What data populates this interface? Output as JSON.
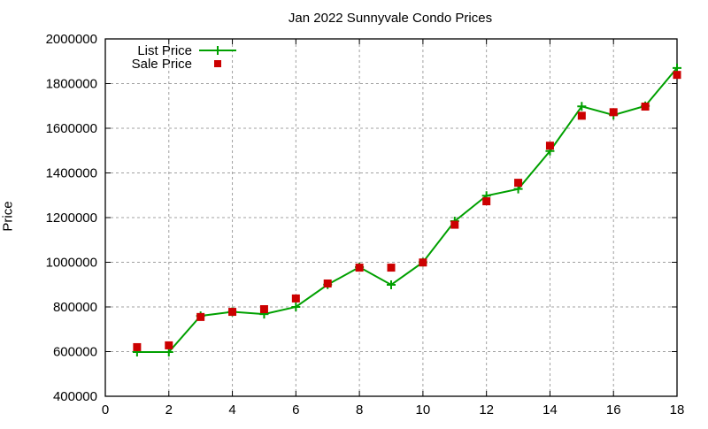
{
  "chart_data": {
    "type": "line",
    "title": "Jan 2022 Sunnyvale Condo Prices",
    "xlabel": "",
    "ylabel": "Price",
    "xlim": [
      0,
      18
    ],
    "ylim": [
      400000,
      2000000
    ],
    "x_ticks": [
      0,
      2,
      4,
      6,
      8,
      10,
      12,
      14,
      16,
      18
    ],
    "y_ticks": [
      400000,
      600000,
      800000,
      1000000,
      1200000,
      1400000,
      1600000,
      1800000,
      2000000
    ],
    "grid": true,
    "legend_position": "top-left",
    "x": [
      1,
      2,
      3,
      4,
      5,
      6,
      7,
      8,
      9,
      10,
      11,
      12,
      13,
      14,
      15,
      16,
      17,
      18
    ],
    "series": [
      {
        "name": "List Price",
        "style": "lines+points",
        "marker": "plus",
        "color": "#00a000",
        "values": [
          598000,
          598000,
          760000,
          778000,
          768000,
          800000,
          900000,
          978000,
          899000,
          1000000,
          1184000,
          1298000,
          1328000,
          1498000,
          1698000,
          1659000,
          1700000,
          1870000
        ]
      },
      {
        "name": "Sale Price",
        "style": "points",
        "marker": "filled-square",
        "color": "#cc0000",
        "values": [
          620000,
          628000,
          755000,
          778000,
          790000,
          838000,
          905000,
          976000,
          976000,
          999000,
          1168000,
          1273000,
          1356000,
          1522000,
          1656000,
          1672000,
          1697000,
          1839000
        ]
      }
    ]
  }
}
